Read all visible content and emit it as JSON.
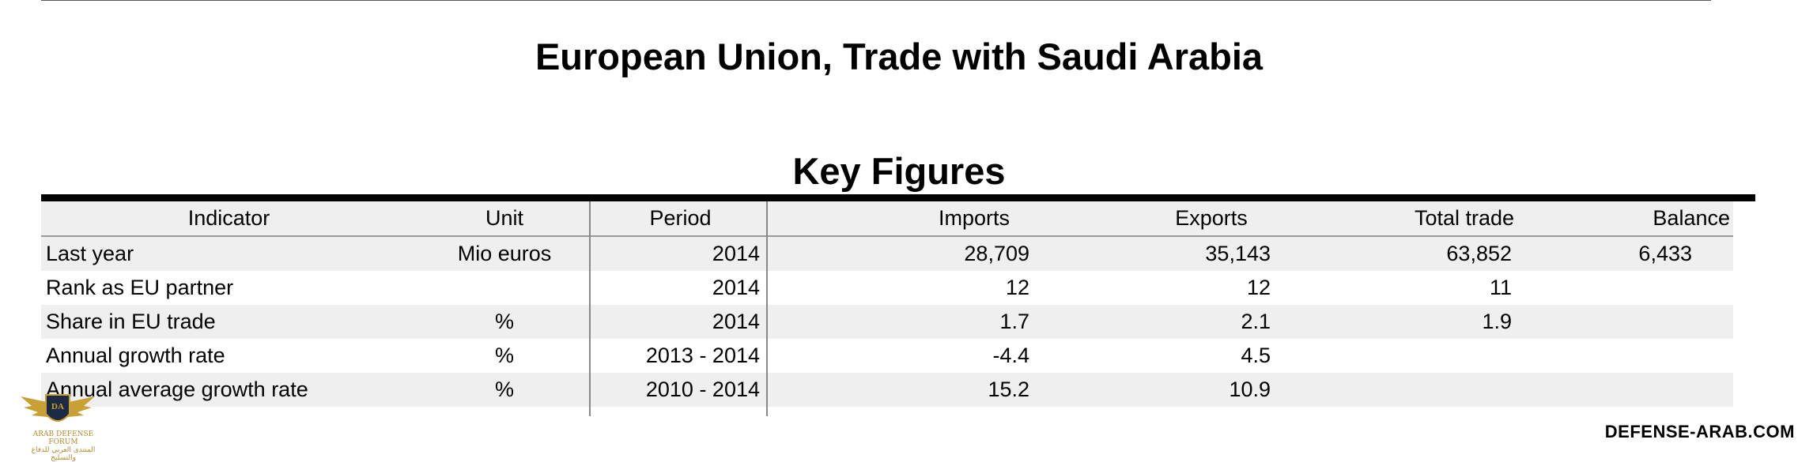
{
  "title": "European Union, Trade with Saudi Arabia",
  "section_title": "Key Figures",
  "table": {
    "headers": [
      "Indicator",
      "Unit",
      "Period",
      "Imports",
      "Exports",
      "Total trade",
      "Balance"
    ],
    "rows": [
      [
        "Last year",
        "Mio euros",
        "2014",
        "28,709",
        "35,143",
        "63,852",
        "6,433"
      ],
      [
        "Rank as EU partner",
        "",
        "2014",
        "12",
        "12",
        "11",
        ""
      ],
      [
        "Share in EU trade",
        "%",
        "2014",
        "1.7",
        "2.1",
        "1.9",
        ""
      ],
      [
        "Annual growth rate",
        "%",
        "2013 - 2014",
        "-4.4",
        "4.5",
        "",
        ""
      ],
      [
        "Annual average growth rate",
        "%",
        "2010 - 2014",
        "15.2",
        "10.9",
        "",
        ""
      ]
    ]
  },
  "logo": {
    "name": "arab-defense-forum-logo",
    "text_line1": "ARAB DEFENSE FORUM",
    "text_line2": "المنتدى العربي للدفاع والتسليح",
    "accent": "#c9a033"
  },
  "watermark": "DEFENSE-ARAB.COM"
}
